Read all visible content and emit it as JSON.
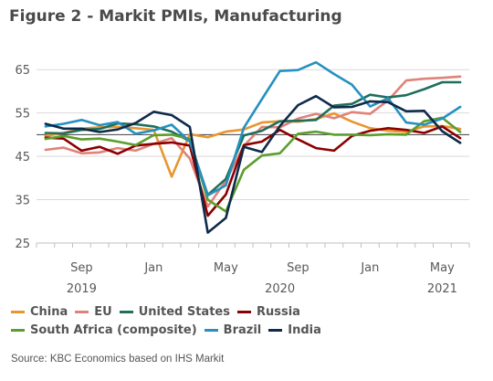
{
  "title": "Figure 2 - Markit PMIs, Manufacturing",
  "source": "Source: KBC Economics based on IHS Markit",
  "chart_data": {
    "type": "line",
    "ylim": [
      25,
      68
    ],
    "yticks": [
      25,
      35,
      45,
      55,
      65
    ],
    "reference_line": 50,
    "xticks": [
      {
        "label": "Sep",
        "index": 2
      },
      {
        "label": "Jan",
        "index": 6
      },
      {
        "label": "May",
        "index": 10
      },
      {
        "label": "Sep",
        "index": 14
      },
      {
        "label": "Jan",
        "index": 18
      },
      {
        "label": "May",
        "index": 22
      }
    ],
    "year_labels": [
      {
        "label": "2019",
        "index": 2
      },
      {
        "label": "2020",
        "index": 13
      },
      {
        "label": "2021",
        "index": 22
      }
    ],
    "x": [
      "2019-07",
      "2019-08",
      "2019-09",
      "2019-10",
      "2019-11",
      "2019-12",
      "2020-01",
      "2020-02",
      "2020-03",
      "2020-04",
      "2020-05",
      "2020-06",
      "2020-07",
      "2020-08",
      "2020-09",
      "2020-10",
      "2020-11",
      "2020-12",
      "2021-01",
      "2021-02",
      "2021-03",
      "2021-04",
      "2021-05",
      "2021-06"
    ],
    "series": [
      {
        "name": "China",
        "color": "#E8962E",
        "values": [
          49.7,
          50.4,
          51.4,
          51.7,
          51.8,
          51.5,
          51.1,
          40.3,
          50.1,
          49.4,
          50.7,
          51.2,
          52.8,
          53.1,
          53.0,
          53.6,
          54.9,
          53.0,
          51.5,
          50.9,
          50.6,
          51.9,
          52.0,
          51.3
        ]
      },
      {
        "name": "EU",
        "color": "#E0827A",
        "values": [
          46.5,
          47.0,
          45.7,
          45.9,
          46.9,
          46.3,
          47.9,
          49.2,
          44.5,
          33.4,
          39.4,
          47.4,
          51.8,
          51.7,
          53.7,
          54.8,
          53.8,
          55.2,
          54.8,
          57.9,
          62.5,
          62.9,
          63.1,
          63.4
        ]
      },
      {
        "name": "United States",
        "color": "#1E6F5C",
        "values": [
          50.4,
          50.3,
          51.1,
          51.3,
          52.6,
          52.4,
          51.9,
          50.7,
          48.5,
          36.1,
          39.8,
          49.8,
          50.9,
          53.1,
          53.2,
          53.4,
          56.7,
          57.1,
          59.2,
          58.6,
          59.1,
          60.5,
          62.1,
          62.1
        ]
      },
      {
        "name": "Russia",
        "color": "#8B0000",
        "values": [
          49.3,
          49.1,
          46.3,
          47.2,
          45.6,
          47.5,
          47.9,
          48.2,
          47.5,
          31.3,
          36.2,
          47.6,
          48.4,
          51.1,
          48.9,
          46.9,
          46.3,
          49.7,
          50.9,
          51.5,
          51.1,
          50.4,
          51.9,
          49.2
        ]
      },
      {
        "name": "South Africa (composite)",
        "color": "#5C9E2D",
        "values": [
          49.0,
          49.7,
          48.9,
          49.1,
          48.4,
          47.6,
          49.9,
          50.0,
          49.0,
          35.0,
          32.3,
          41.9,
          45.2,
          45.7,
          50.2,
          50.7,
          50.0,
          50.0,
          49.9,
          50.1,
          50.0,
          53.1,
          53.9,
          50.6
        ]
      },
      {
        "name": "Brazil",
        "color": "#2790C0",
        "values": [
          51.9,
          52.5,
          53.4,
          52.2,
          52.9,
          50.2,
          51.0,
          52.3,
          48.4,
          36.0,
          38.3,
          51.6,
          58.2,
          64.7,
          64.9,
          66.7,
          64.0,
          61.5,
          56.5,
          58.4,
          52.8,
          52.3,
          53.7,
          56.4
        ]
      },
      {
        "name": "India",
        "color": "#0F2A4A",
        "values": [
          52.5,
          51.4,
          51.4,
          50.6,
          51.2,
          52.7,
          55.3,
          54.5,
          51.8,
          27.4,
          30.8,
          47.2,
          46.0,
          52.0,
          56.8,
          58.9,
          56.3,
          56.4,
          57.7,
          57.5,
          55.4,
          55.5,
          50.8,
          48.1
        ]
      }
    ]
  }
}
